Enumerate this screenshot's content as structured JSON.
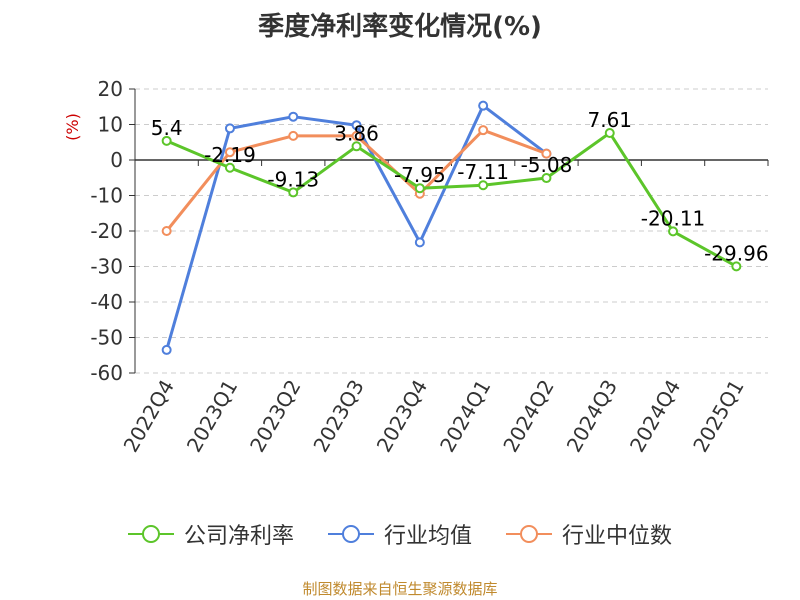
{
  "chart_data": {
    "type": "line",
    "title": "季度净利率变化情况(%)",
    "ylabel": "(%)",
    "xlabel": "",
    "categories": [
      "2022Q4",
      "2023Q1",
      "2023Q2",
      "2023Q3",
      "2023Q4",
      "2024Q1",
      "2024Q2",
      "2024Q3",
      "2024Q4",
      "2025Q1"
    ],
    "ylim": [
      -60,
      20
    ],
    "yticks": [
      20,
      10,
      0,
      -10,
      -20,
      -30,
      -40,
      -50,
      -60
    ],
    "grid": true,
    "legend_position": "bottom",
    "series": [
      {
        "name": "公司净利率",
        "color": "#5cc52a",
        "values": [
          5.4,
          -2.19,
          -9.13,
          3.86,
          -7.95,
          -7.11,
          -5.08,
          7.61,
          -20.11,
          -29.96
        ],
        "labels": [
          "5.4",
          "-2.19",
          "-9.13",
          "3.86",
          "-7.95",
          "-7.11",
          "-5.08",
          "7.61",
          "-20.11",
          "-29.96"
        ]
      },
      {
        "name": "行业均值",
        "color": "#4f7fdc",
        "values": [
          -53.5,
          8.9,
          12.2,
          9.8,
          -23.2,
          15.3,
          1.8,
          null,
          null,
          null
        ]
      },
      {
        "name": "行业中位数",
        "color": "#f28e5c",
        "values": [
          -20.0,
          2.2,
          6.8,
          6.8,
          -9.5,
          8.4,
          1.8,
          null,
          null,
          null
        ]
      }
    ]
  },
  "source_note": "制图数据来自恒生聚源数据库"
}
